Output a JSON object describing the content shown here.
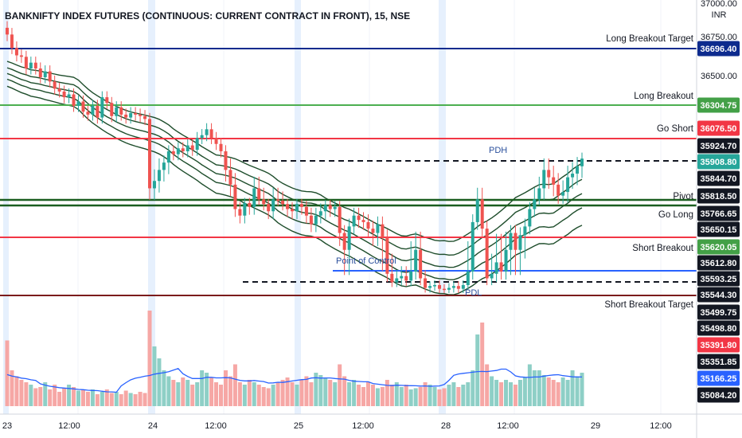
{
  "chart_data": {
    "type": "candlestick",
    "title": "BANKNIFTY INDEX FUTURES (CONTINUOUS: CURRENT CONTRACT IN FRONT), 15, NSE",
    "currency": "INR",
    "y_axis_top_label": "37000.00",
    "x_ticks": [
      "23",
      "12:00",
      "24",
      "12:00",
      "25",
      "12:00",
      "28",
      "12:00",
      "29",
      "12:00"
    ],
    "levels": [
      {
        "name": "Long Breakout Target",
        "price": 36696.4,
        "color": "#0d2b8e",
        "style": "solid"
      },
      {
        "name": "Long Breakout",
        "price": 36304.75,
        "color": "#4caf50",
        "style": "solid"
      },
      {
        "name": "Go Short",
        "price": 36076.5,
        "color": "#f23645",
        "style": "solid"
      },
      {
        "name": "PDH",
        "price": 35924.7,
        "color": "#131722",
        "style": "dashed"
      },
      {
        "name": "Pivot",
        "price": 35818.5,
        "color": "#1b5e20",
        "style": "solid"
      },
      {
        "name": "Go Long",
        "price": 35766.65,
        "color": "#1b5e20",
        "style": "solid"
      },
      {
        "name": "Short Breakout",
        "price": 35620.05,
        "color": "#f23645",
        "style": "solid"
      },
      {
        "name": "Point of Control",
        "price": 35593.25,
        "color": "#2962ff",
        "style": "solid"
      },
      {
        "name": "PDL",
        "price": 35544.3,
        "color": "#131722",
        "style": "dashed"
      },
      {
        "name": "Short Breakout Target",
        "price": 35499.75,
        "color": "#7b1b1b",
        "style": "solid"
      }
    ],
    "price_tags": [
      {
        "text": "36696.40",
        "bg": "#0d2b8e"
      },
      {
        "text": "36304.75",
        "bg": "#43a047"
      },
      {
        "text": "36076.50",
        "bg": "#f23645"
      },
      {
        "text": "35924.70",
        "bg": "#131722"
      },
      {
        "text": "35908.80",
        "bg": "#26a69a"
      },
      {
        "text": "35844.70",
        "bg": "#131722"
      },
      {
        "text": "35818.50",
        "bg": "#131722"
      },
      {
        "text": "35766.65",
        "bg": "#131722"
      },
      {
        "text": "35650.15",
        "bg": "#131722"
      },
      {
        "text": "35620.05",
        "bg": "#43a047"
      },
      {
        "text": "35612.80",
        "bg": "#131722"
      },
      {
        "text": "35593.25",
        "bg": "#131722"
      },
      {
        "text": "35544.30",
        "bg": "#131722"
      },
      {
        "text": "35499.75",
        "bg": "#131722"
      },
      {
        "text": "35498.80",
        "bg": "#131722"
      },
      {
        "text": "35391.80",
        "bg": "#f23645"
      },
      {
        "text": "35351.85",
        "bg": "#131722"
      },
      {
        "text": "35166.25",
        "bg": "#2962ff"
      },
      {
        "text": "35084.20",
        "bg": "#131722"
      }
    ],
    "axis_ticks": [
      "36750.00",
      "36500.00"
    ],
    "closes": [
      36780,
      36700,
      36650,
      36640,
      36560,
      36600,
      36560,
      36500,
      36540,
      36470,
      36420,
      36400,
      36360,
      36380,
      36300,
      36330,
      36260,
      36240,
      36300,
      36220,
      36360,
      36320,
      36230,
      36290,
      36240,
      36220,
      36250,
      36240,
      36230,
      36210,
      35850,
      35870,
      35900,
      35920,
      35990,
      35970,
      36010,
      35990,
      36030,
      36000,
      36080,
      36100,
      36140,
      36080,
      36040,
      35990,
      35900,
      35860,
      35750,
      35720,
      35790,
      35760,
      35850,
      35820,
      35780,
      35740,
      35820,
      35810,
      35780,
      35750,
      35740,
      35780,
      35760,
      35720,
      35680,
      35720,
      35740,
      35770,
      35750,
      35760,
      35640,
      35610,
      35670,
      35720,
      35700,
      35690,
      35660,
      35640,
      35680,
      35620,
      35580,
      35540,
      35560,
      35570,
      35550,
      35590,
      35610,
      35560,
      35480,
      35500,
      35510,
      35470,
      35460,
      35480,
      35500,
      35470,
      35510,
      35590,
      35690,
      35820,
      35660,
      35560,
      35580,
      35600,
      35590,
      35610,
      35640,
      35610,
      35630,
      35670,
      35750,
      35820,
      35850,
      35900,
      35880,
      35860,
      35830,
      35840,
      35880,
      35890,
      35910,
      35940
    ],
    "volumes": [
      55,
      30,
      25,
      22,
      20,
      18,
      15,
      16,
      20,
      14,
      18,
      12,
      15,
      18,
      16,
      13,
      14,
      12,
      14,
      10,
      12,
      14,
      11,
      12,
      10,
      13,
      11,
      10,
      12,
      11,
      80,
      50,
      40,
      30,
      25,
      22,
      20,
      24,
      22,
      18,
      20,
      30,
      28,
      24,
      20,
      18,
      30,
      25,
      35,
      20,
      18,
      22,
      20,
      18,
      16,
      15,
      18,
      20,
      22,
      24,
      20,
      18,
      22,
      25,
      20,
      28,
      26,
      24,
      22,
      20,
      35,
      25,
      20,
      22,
      18,
      16,
      20,
      18,
      15,
      16,
      22,
      18,
      20,
      16,
      18,
      14,
      15,
      16,
      20,
      18,
      16,
      14,
      15,
      18,
      20,
      16,
      18,
      20,
      30,
      60,
      70,
      35,
      25,
      22,
      20,
      22,
      20,
      18,
      22,
      24,
      35,
      30,
      30,
      26,
      24,
      22,
      20,
      24,
      22,
      30,
      25,
      28
    ],
    "volume_ma_color": "#2962ff",
    "up_color": "#26a69a",
    "down_color": "#ef5350"
  }
}
